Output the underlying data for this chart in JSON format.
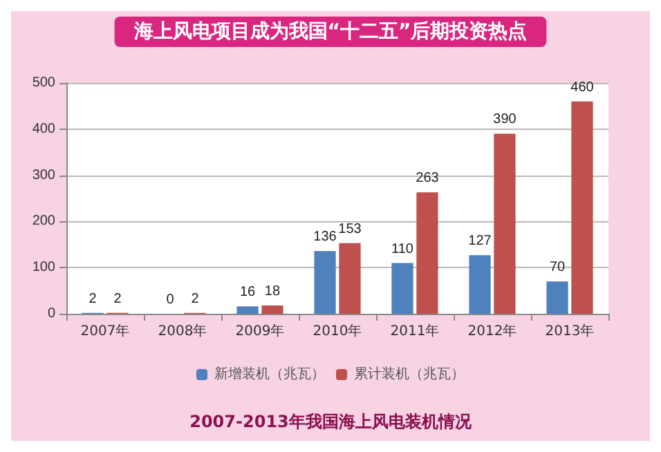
{
  "chart_data": {
    "type": "bar",
    "title": "海上风电项目成为我国“十二五”后期投资热点",
    "annotations": [
      "2007-2013年我国海上风电装机情况"
    ],
    "categories": [
      "2007年",
      "2008年",
      "2009年",
      "2010年",
      "2011年",
      "2012年",
      "2013年"
    ],
    "series": [
      {
        "name": "新增装机（兆瓦）",
        "color": "#4f81bd",
        "values": [
          2,
          0,
          16,
          136,
          110,
          127,
          70
        ]
      },
      {
        "name": "累计装机（兆瓦）",
        "color": "#c0504d",
        "values": [
          2,
          2,
          18,
          153,
          263,
          390,
          460
        ]
      }
    ],
    "ylim": [
      0,
      500
    ],
    "yticks": [
      0,
      100,
      200,
      300,
      400,
      500
    ],
    "grid": "y",
    "legend": "bottom",
    "data_labels": true
  }
}
